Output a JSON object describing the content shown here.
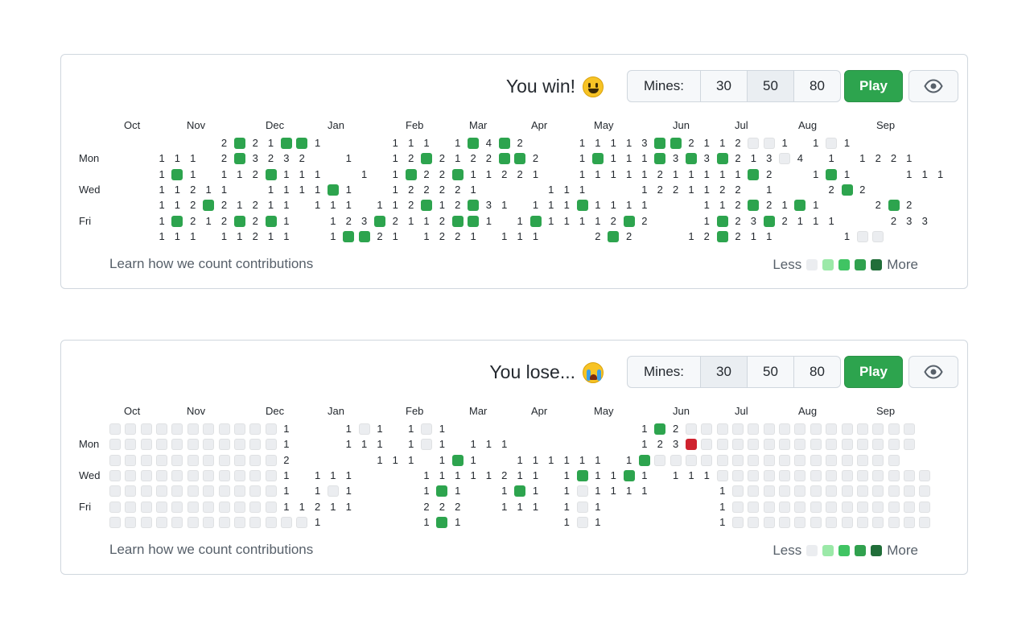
{
  "months": [
    "Oct",
    "Nov",
    "Dec",
    "Jan",
    "Feb",
    "Mar",
    "Apr",
    "May",
    "Jun",
    "Jul",
    "Aug",
    "Sep"
  ],
  "day_labels": [
    "Mon",
    "Wed",
    "Fri"
  ],
  "mines_label": "Mines:",
  "mine_options": [
    "30",
    "50",
    "80"
  ],
  "play_label": "Play",
  "learn_label": "Learn how we count contributions",
  "legend_less": "Less",
  "legend_more": "More",
  "legend_colors": [
    "#ebedf0",
    "#9be9a8",
    "#40c463",
    "#30a14e",
    "#216e39"
  ],
  "colors": {
    "flag": "#2da44e",
    "mine": "#cf222e",
    "hidden": "#ebedf0",
    "play": "#2da44e"
  },
  "games": [
    {
      "status": "You win!",
      "emoji_icon": "grinning-face-icon",
      "selected_mines": "50",
      "columns": 54,
      "rows": [
        "       2F21FF1    111 1F4F2   11113FF2112HH1 1H1   ",
        "   111 2F3232  1  12F2122FF2  1F111F3F3F213H4 1 1221  ",
        "   1F1 112F111  1 1F22F11221  11111211111F2  1F1   111",
        "   11211  1111F1  122221    111   1221122 1   2F2    ",
        "   112F21211 111 112F12F31 111F1111   112F21F1   2F2 ",
        "   1F212F2F1  123F2112FF1 1F11112F2   1F23F2111   233",
        "   111 11211  1FF21 1221 111   2F2   12F211    1HH   "
      ]
    },
    {
      "status": "You lose...",
      "emoji_icon": "crying-face-icon",
      "selected_mines": "30",
      "columns": 54,
      "rows": [
        "HHHHHHHHHHH1   1H1 1H1            1F2HHHHHHHHHHHHHHH",
        "HHHHHHHHHHH1   111 1H1 111        123MHHHHHHHHHHHHHH",
        "HHHHHHHHHHH2     111 1F1  111111 1FHHHHHHHHHHHHHHHH ",
        "HHHHHHHHHHH1 111    11111211 1F11F1 111HHHHHHHHHHHHHH",
        "HHHHHHHHHHH1 1H1    1F1  1F1 1H1111    1HHHHHHHHHHHHH",
        "HHHHHHHHHHH11211    222  111 1H1       1HHHHHHHHHHHHH",
        "HHHHHHHHHHHHH1      1F1      1H1       1HHHHHHHHHHHHH"
      ]
    }
  ]
}
